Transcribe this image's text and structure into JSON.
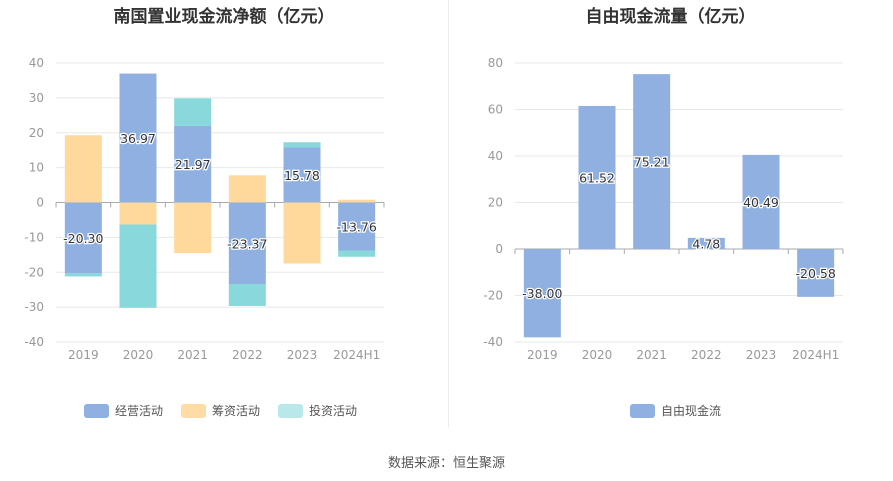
{
  "source_text": "数据来源：恒生聚源",
  "colors": {
    "operating": "#8fb0e0",
    "financing": "#ffd99b",
    "investing": "#88d8dc",
    "fcf": "#8fb0e0",
    "grid": "#e8e8e8",
    "axis_text": "#999999"
  },
  "chart_data": [
    {
      "type": "bar",
      "stacked": true,
      "title": "南国置业现金流净额（亿元）",
      "categories": [
        "2019",
        "2020",
        "2021",
        "2022",
        "2023",
        "2024H1"
      ],
      "ylim": [
        -40,
        40
      ],
      "yticks": [
        40,
        30,
        20,
        10,
        0,
        -10,
        -20,
        -30,
        -40
      ],
      "grid": true,
      "legend_position": "bottom",
      "series": [
        {
          "name": "经营活动",
          "values": [
            -20.3,
            36.97,
            21.97,
            -23.37,
            15.78,
            -13.76
          ],
          "labeled": true
        },
        {
          "name": "筹资活动",
          "values": [
            19.3,
            -6.3,
            -14.5,
            7.8,
            -17.5,
            0.8
          ],
          "labeled": false
        },
        {
          "name": "投资活动",
          "values": [
            -0.9,
            -23.9,
            7.9,
            -6.3,
            1.5,
            -1.8
          ],
          "labeled": false
        }
      ]
    },
    {
      "type": "bar",
      "title": "自由现金流量（亿元）",
      "categories": [
        "2019",
        "2020",
        "2021",
        "2022",
        "2023",
        "2024H1"
      ],
      "ylim": [
        -40,
        80
      ],
      "yticks": [
        80,
        60,
        40,
        20,
        0,
        -20,
        -40
      ],
      "grid": true,
      "legend_position": "bottom",
      "series": [
        {
          "name": "自由现金流",
          "values": [
            -38.0,
            61.52,
            75.21,
            4.78,
            40.49,
            -20.58
          ],
          "labeled": true
        }
      ]
    }
  ]
}
